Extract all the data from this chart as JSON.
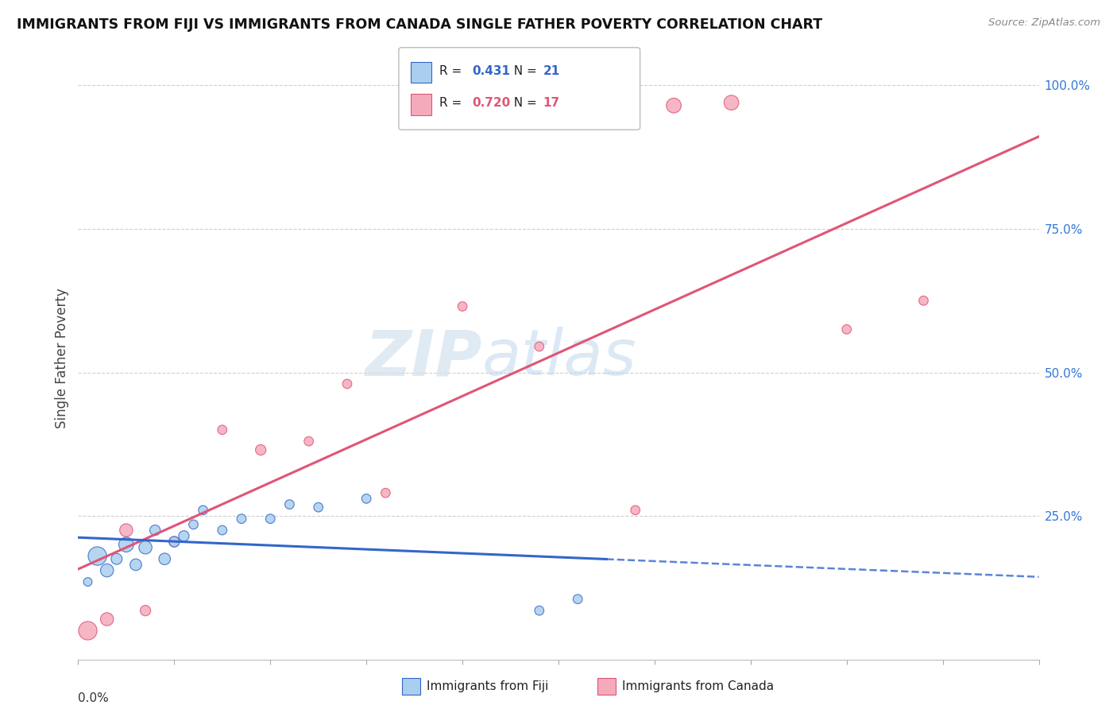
{
  "title": "IMMIGRANTS FROM FIJI VS IMMIGRANTS FROM CANADA SINGLE FATHER POVERTY CORRELATION CHART",
  "source": "Source: ZipAtlas.com",
  "ylabel": "Single Father Poverty",
  "fiji_R": 0.431,
  "fiji_N": 21,
  "canada_R": 0.72,
  "canada_N": 17,
  "fiji_color": "#aacfee",
  "canada_color": "#f5aabb",
  "fiji_line_color": "#3366cc",
  "canada_line_color": "#e05575",
  "fiji_scatter_x": [
    0.001,
    0.002,
    0.003,
    0.004,
    0.005,
    0.006,
    0.007,
    0.008,
    0.009,
    0.01,
    0.011,
    0.012,
    0.013,
    0.015,
    0.017,
    0.02,
    0.022,
    0.025,
    0.03,
    0.048,
    0.052
  ],
  "fiji_scatter_y": [
    0.135,
    0.18,
    0.155,
    0.175,
    0.2,
    0.165,
    0.195,
    0.225,
    0.175,
    0.205,
    0.215,
    0.235,
    0.26,
    0.225,
    0.245,
    0.245,
    0.27,
    0.265,
    0.28,
    0.085,
    0.105
  ],
  "fiji_scatter_size": [
    60,
    280,
    140,
    100,
    180,
    110,
    140,
    90,
    110,
    90,
    90,
    70,
    70,
    70,
    70,
    70,
    70,
    70,
    70,
    70,
    70
  ],
  "canada_scatter_x": [
    0.001,
    0.003,
    0.005,
    0.007,
    0.01,
    0.015,
    0.019,
    0.024,
    0.028,
    0.032,
    0.04,
    0.048,
    0.058,
    0.062,
    0.068,
    0.08,
    0.088
  ],
  "canada_scatter_y": [
    0.05,
    0.07,
    0.225,
    0.085,
    0.205,
    0.4,
    0.365,
    0.38,
    0.48,
    0.29,
    0.615,
    0.545,
    0.26,
    0.965,
    0.97,
    0.575,
    0.625
  ],
  "canada_scatter_size": [
    280,
    140,
    140,
    90,
    90,
    70,
    90,
    70,
    70,
    70,
    70,
    70,
    70,
    180,
    180,
    70,
    70
  ],
  "xmin": 0.0,
  "xmax": 0.1,
  "ymin": 0.0,
  "ymax": 1.05,
  "right_yticks": [
    0.25,
    0.5,
    0.75,
    1.0
  ],
  "right_yticklabels": [
    "25.0%",
    "50.0%",
    "75.0%",
    "100.0%"
  ],
  "watermark_zip": "ZIP",
  "watermark_atlas": "atlas",
  "background_color": "#ffffff",
  "grid_color": "#d0d0d0",
  "fiji_line_solid_end": 0.055,
  "fiji_line_dashed_start": 0.055
}
